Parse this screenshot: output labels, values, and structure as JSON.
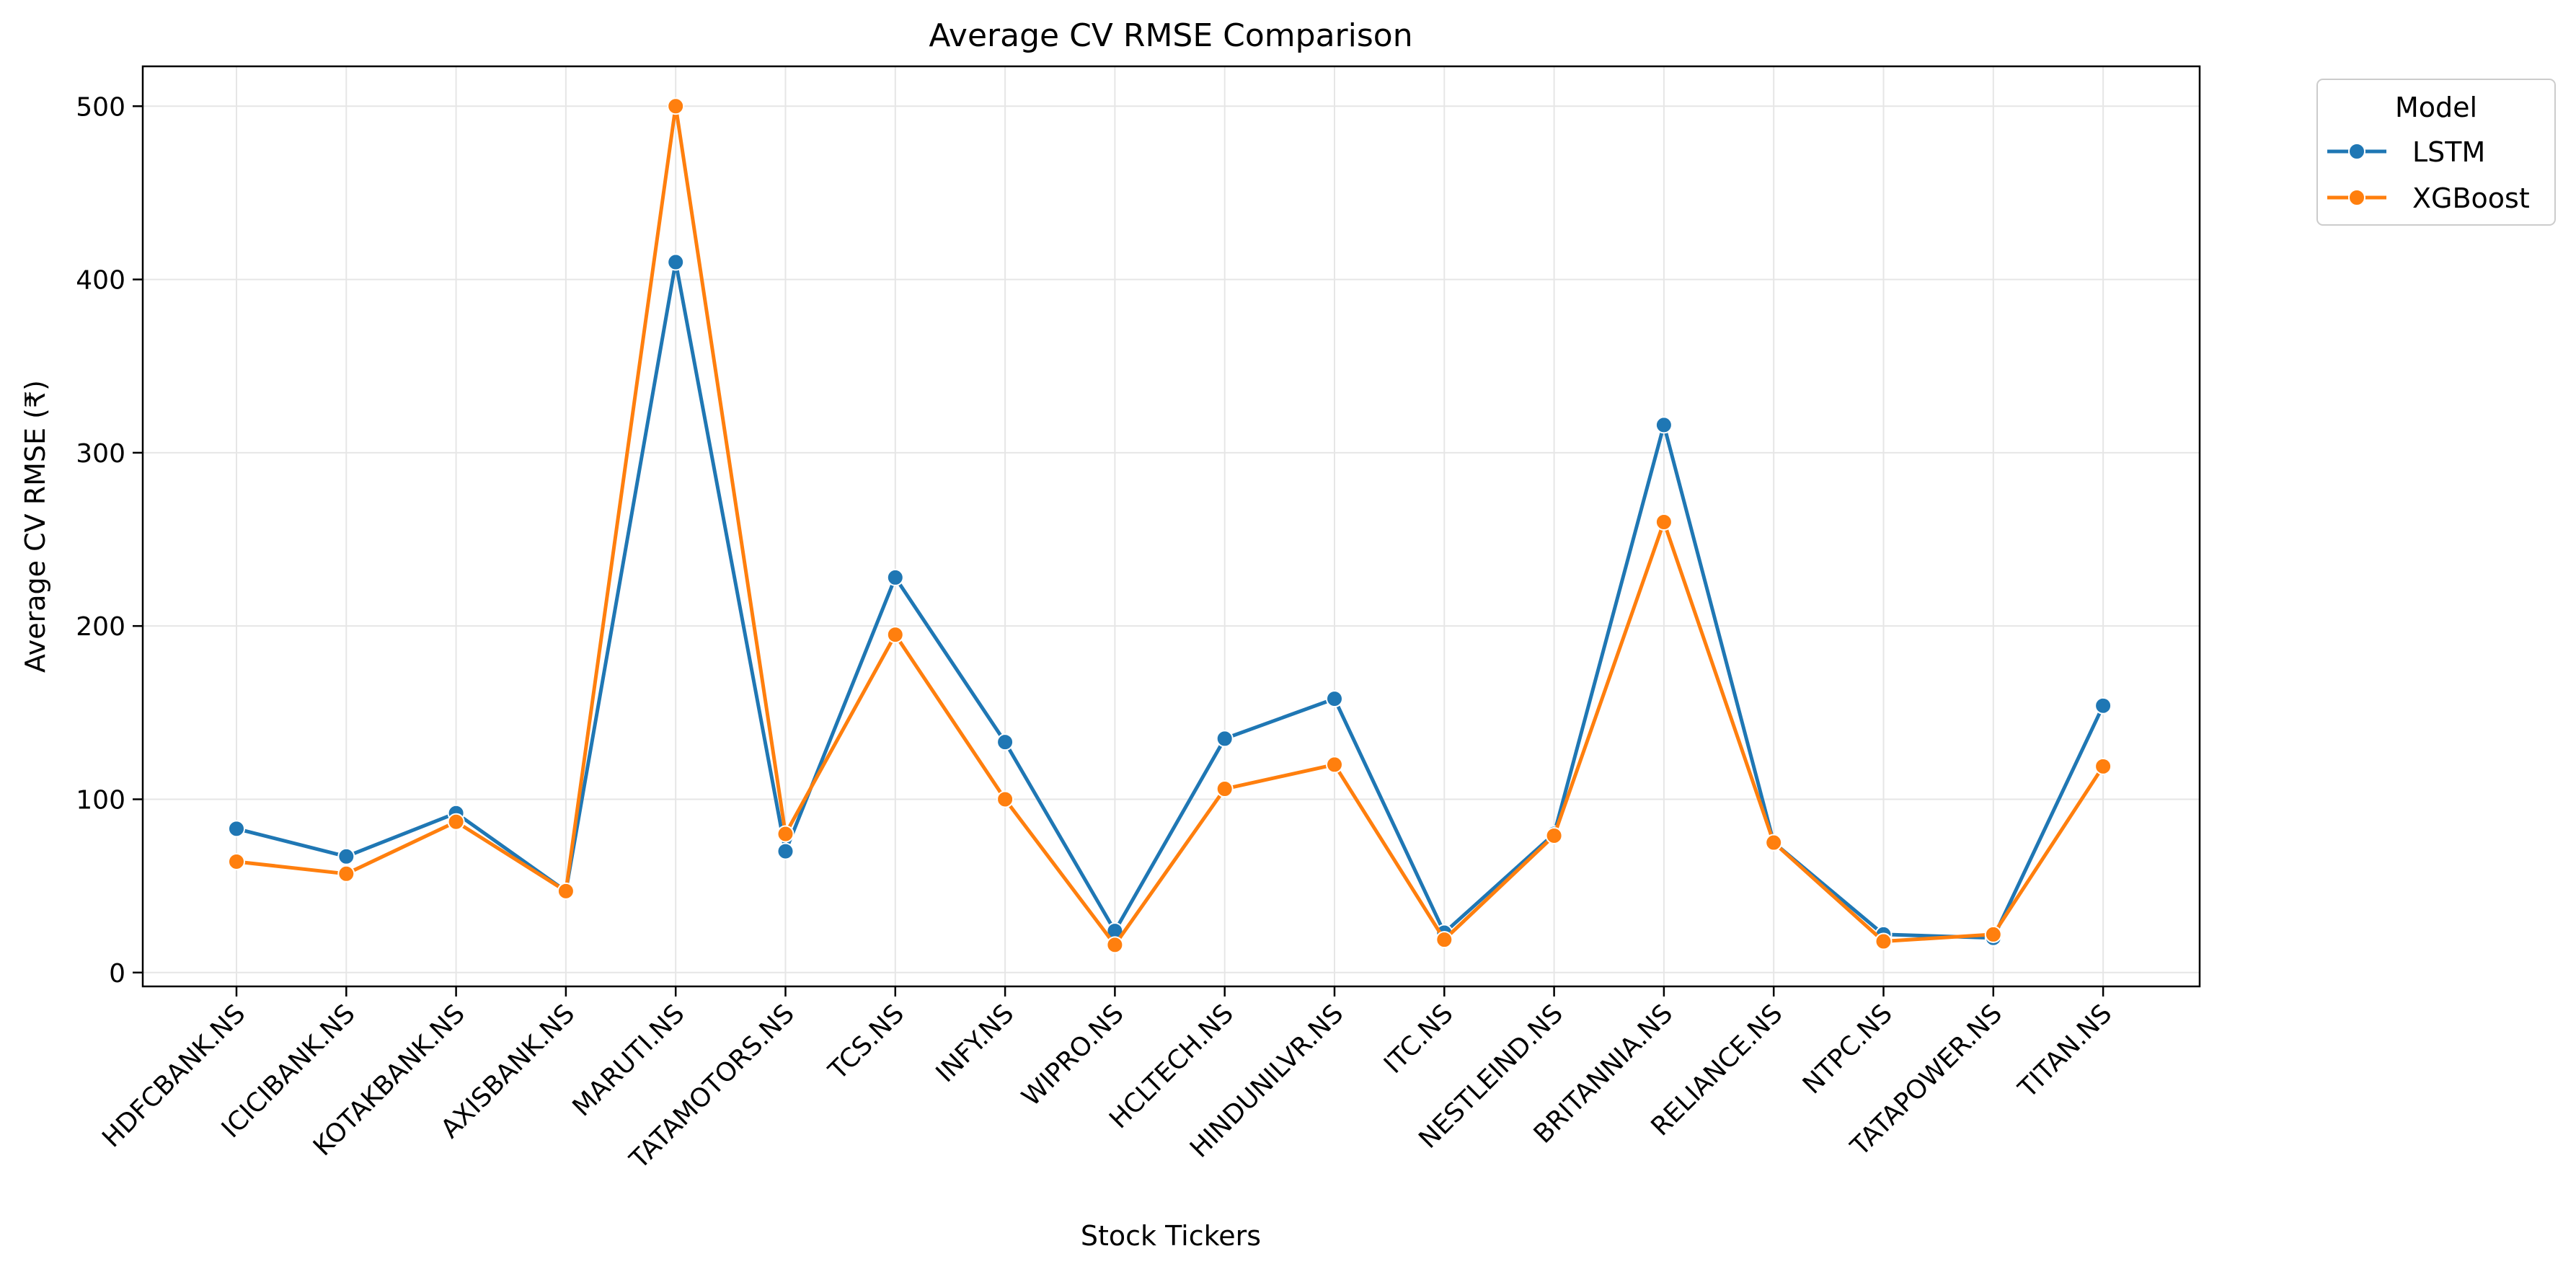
{
  "chart_data": {
    "type": "line",
    "title": "Average CV RMSE Comparison",
    "xlabel": "Stock Tickers",
    "ylabel": "Average CV RMSE (₹)",
    "categories": [
      "HDFCBANK.NS",
      "ICICIBANK.NS",
      "KOTAKBANK.NS",
      "AXISBANK.NS",
      "MARUTI.NS",
      "TATAMOTORS.NS",
      "TCS.NS",
      "INFY.NS",
      "WIPRO.NS",
      "HCLTECH.NS",
      "HINDUNILVR.NS",
      "ITC.NS",
      "NESTLEIND.NS",
      "BRITANNIA.NS",
      "RELIANCE.NS",
      "NTPC.NS",
      "TATAPOWER.NS",
      "TITAN.NS"
    ],
    "series": [
      {
        "name": "LSTM",
        "color": "#1f77b4",
        "values": [
          83,
          67,
          92,
          47,
          410,
          70,
          228,
          133,
          24,
          135,
          158,
          23,
          80,
          316,
          75,
          22,
          20,
          154
        ]
      },
      {
        "name": "XGBoost",
        "color": "#ff7f0e",
        "values": [
          64,
          57,
          87,
          47,
          500,
          80,
          195,
          100,
          16,
          106,
          120,
          19,
          79,
          260,
          75,
          18,
          22,
          119
        ]
      }
    ],
    "ylim": [
      -8,
      523
    ],
    "yticks": [
      0,
      100,
      200,
      300,
      400,
      500
    ],
    "grid": true,
    "legend": {
      "title": "Model",
      "placement": "outside-top-right"
    }
  }
}
